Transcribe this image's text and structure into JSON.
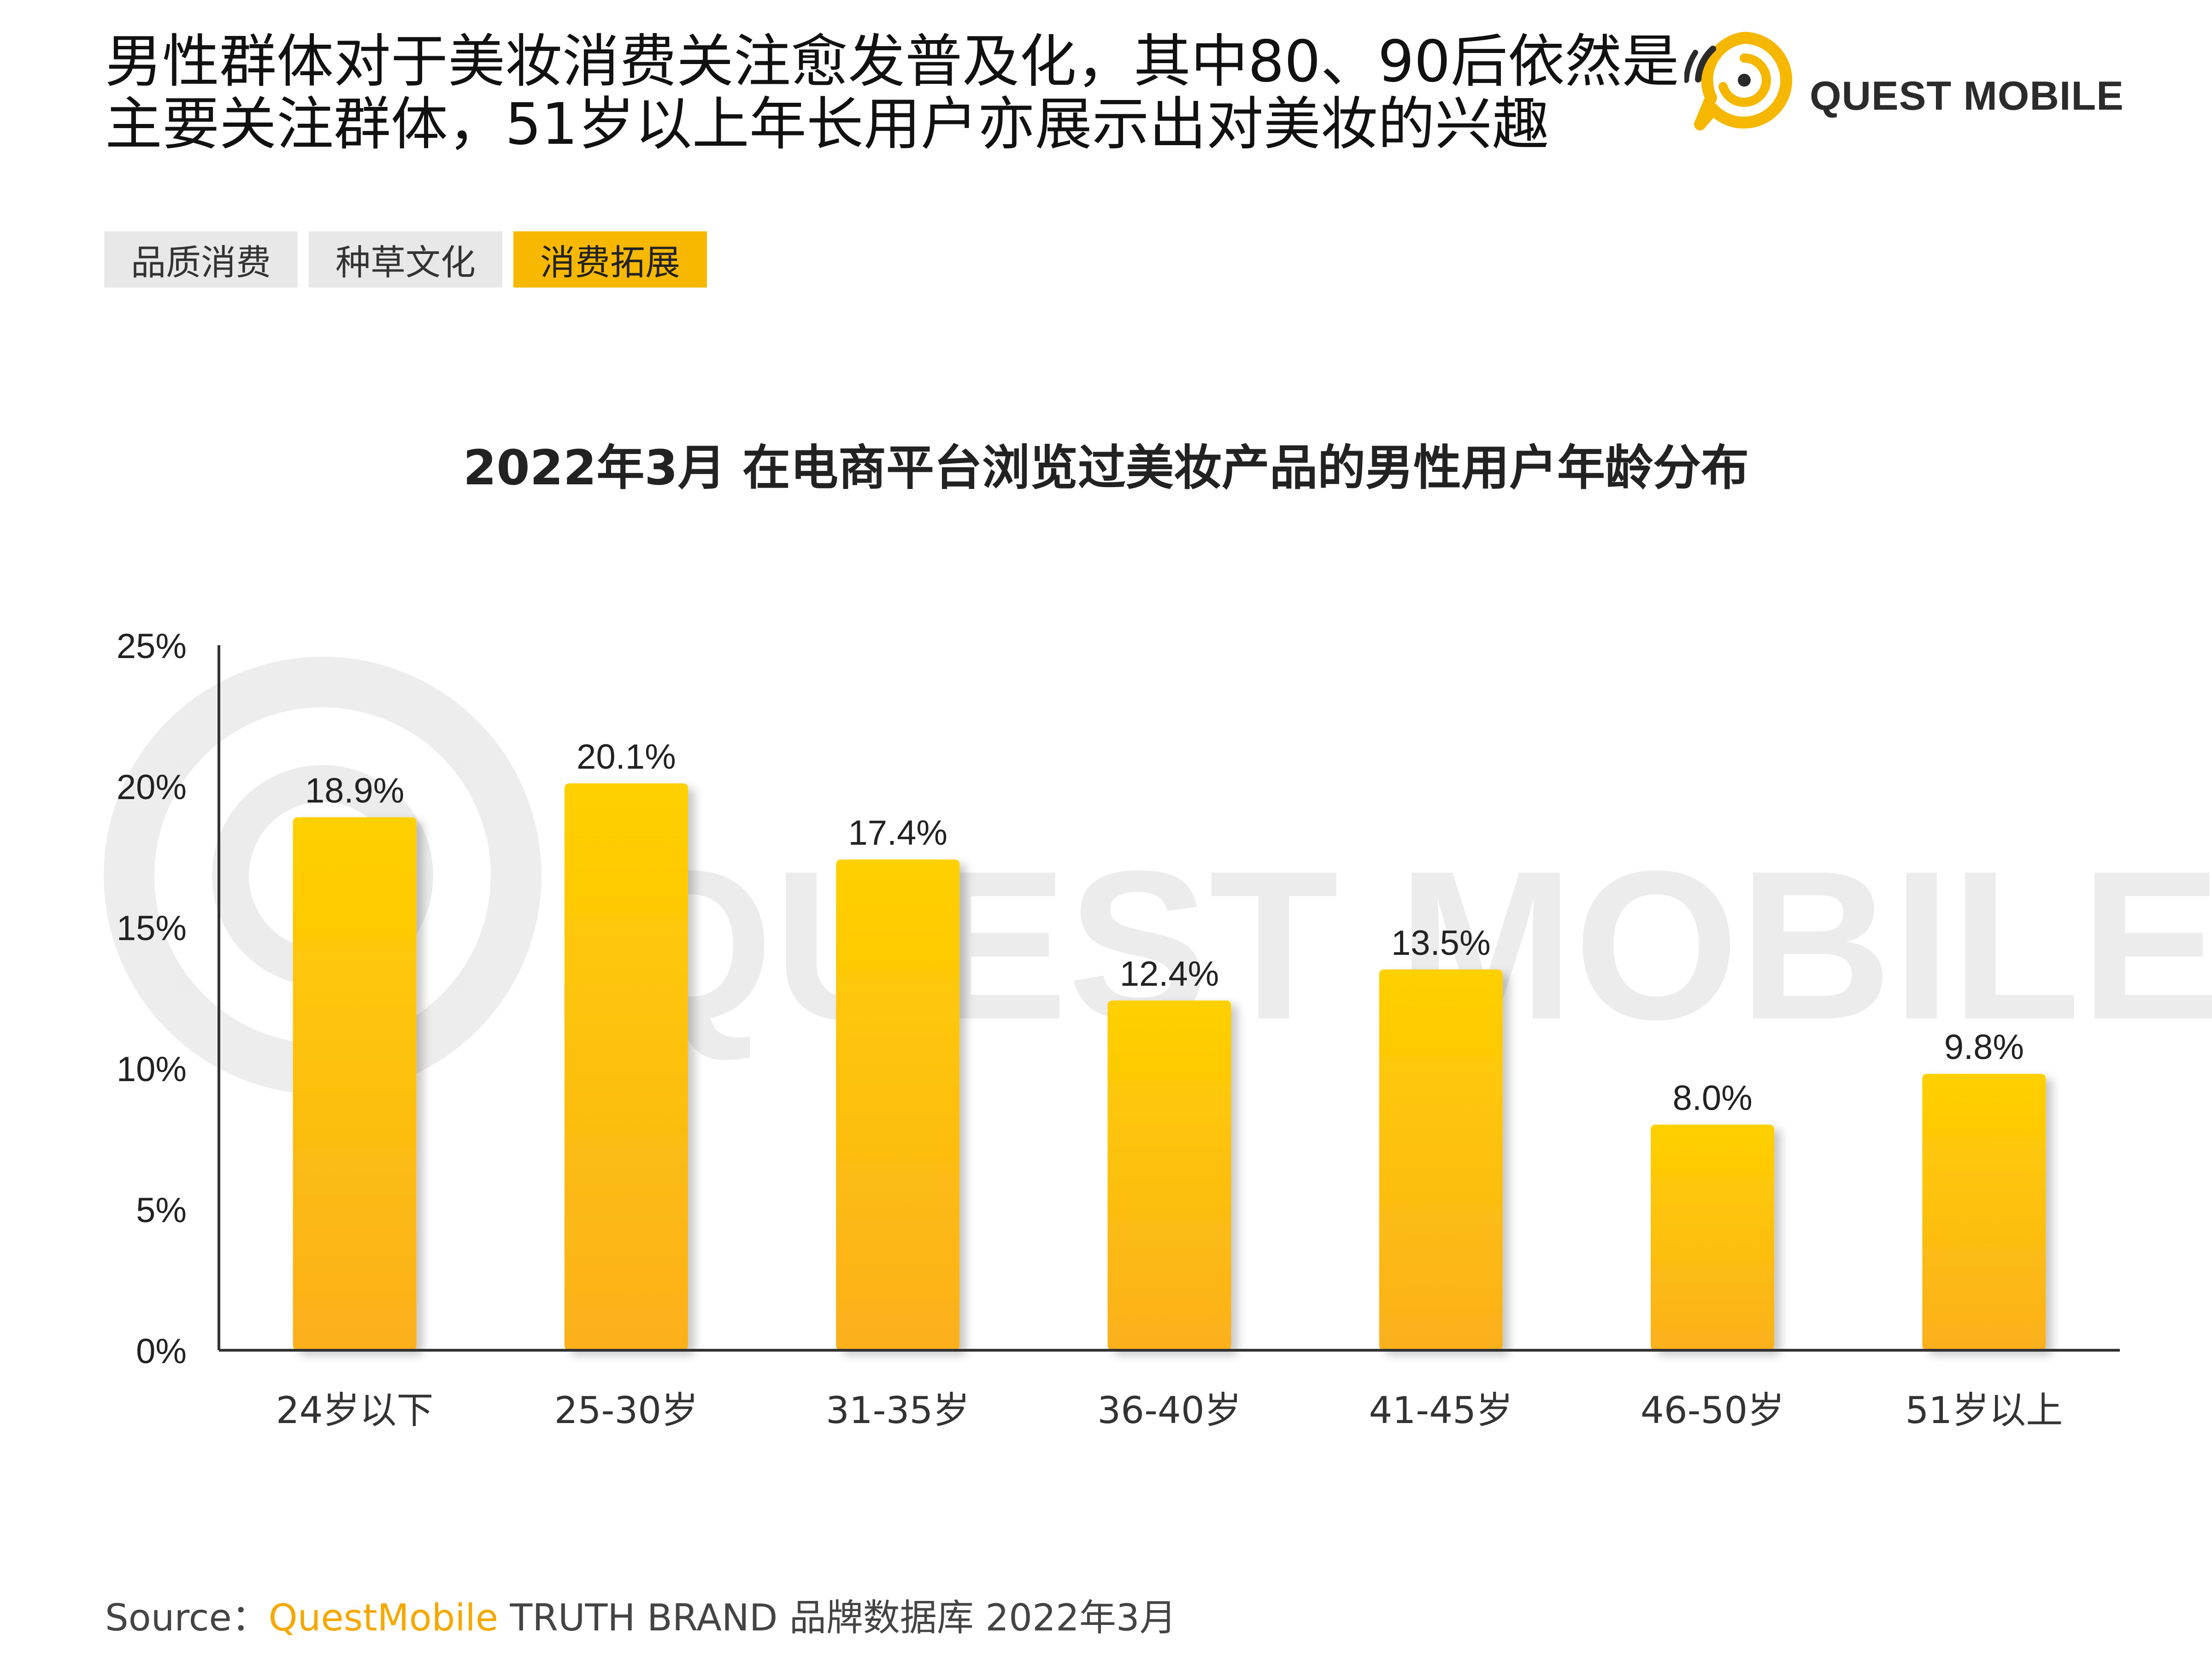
{
  "headline": "男性群体对于美妆消费关注愈发普及化，其中80、90后依然是主要关注群体，51岁以上年长用户亦展示出对美妆的兴趣",
  "brand": {
    "name": "QUEST MOBILE",
    "watermark": "QUEST MOBILE",
    "logo_icon": "quest-mobile-logo-icon"
  },
  "tags": [
    {
      "label": "品质消费",
      "active": false
    },
    {
      "label": "种草文化",
      "active": false
    },
    {
      "label": "消费拓展",
      "active": true
    }
  ],
  "chart_data": {
    "type": "bar",
    "title": "2022年3月 在电商平台浏览过美妆产品的男性用户年龄分布",
    "xlabel": "",
    "ylabel": "",
    "categories": [
      "24岁以下",
      "25-30岁",
      "31-35岁",
      "36-40岁",
      "41-45岁",
      "46-50岁",
      "51岁以上"
    ],
    "values": [
      18.9,
      20.1,
      17.4,
      12.4,
      13.5,
      8.0,
      9.8
    ],
    "value_labels": [
      "18.9%",
      "20.1%",
      "17.4%",
      "12.4%",
      "13.5%",
      "8.0%",
      "9.8%"
    ],
    "ylim": [
      0,
      25
    ],
    "yticks": [
      0,
      5,
      10,
      15,
      20,
      25
    ],
    "ytick_labels": [
      "0%",
      "5%",
      "10%",
      "15%",
      "20%",
      "25%"
    ],
    "grid": false,
    "legend": "none",
    "colors": {
      "bar_top": "#ffd000",
      "bar_bottom": "#fbb01c",
      "axis": "#333333"
    }
  },
  "source": {
    "prefix": "Source：",
    "highlight": "QuestMobile",
    "rest": " TRUTH BRAND 品牌数据库 2022年3月"
  },
  "colors": {
    "accent": "#f5a800",
    "tag_inactive": "#e8e8e8",
    "tag_active": "#f8b800"
  }
}
